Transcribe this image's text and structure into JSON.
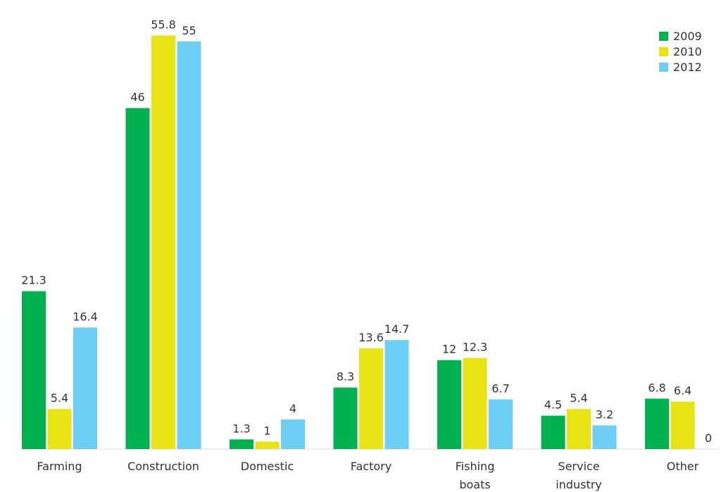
{
  "chart_data": {
    "type": "bar",
    "categories": [
      "Farming",
      "Construction",
      "Domestic",
      "Factory",
      "Fishing boats",
      "Service industry",
      "Other"
    ],
    "category_lines": [
      [
        "Farming"
      ],
      [
        "Construction"
      ],
      [
        "Domestic"
      ],
      [
        "Factory"
      ],
      [
        "Fishing",
        "boats"
      ],
      [
        "Service",
        "industry"
      ],
      [
        "Other"
      ]
    ],
    "series": [
      {
        "name": "2009",
        "values": [
          21.3,
          46,
          1.3,
          8.3,
          12,
          4.5,
          6.8
        ]
      },
      {
        "name": "2010",
        "values": [
          5.4,
          55.8,
          1,
          13.6,
          12.3,
          5.4,
          6.4
        ]
      },
      {
        "name": "2012",
        "values": [
          16.4,
          55,
          4,
          14.7,
          6.7,
          3.2,
          0
        ]
      }
    ],
    "series_colors": [
      "#00b14f",
      "#e8e312",
      "#6dcff6"
    ],
    "ylim": [
      0,
      56.5
    ],
    "grid": false,
    "legend_position": "top-right",
    "title": "",
    "xlabel": "",
    "ylabel": ""
  }
}
